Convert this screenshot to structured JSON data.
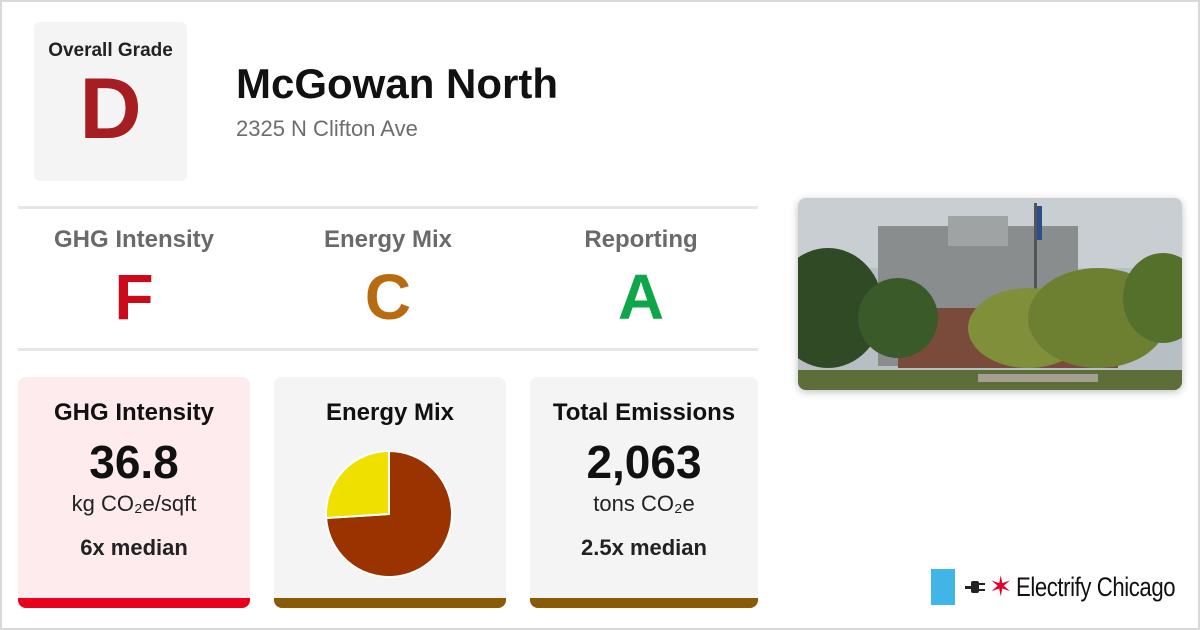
{
  "overall": {
    "label": "Overall Grade",
    "grade": "D"
  },
  "building": {
    "name": "McGowan North",
    "address": "2325 N Clifton Ave"
  },
  "subgrades": [
    {
      "title": "GHG Intensity",
      "grade": "F",
      "color": "#cc0a1c"
    },
    {
      "title": "Energy Mix",
      "grade": "C",
      "color": "#b96b0f"
    },
    {
      "title": "Reporting",
      "grade": "A",
      "color": "#0ea649"
    }
  ],
  "cards": {
    "ghg": {
      "title": "GHG Intensity",
      "value": "36.8",
      "unit": "kg CO₂e/sqft",
      "median": "6x median",
      "bar_color": "#e8001c"
    },
    "mix": {
      "title": "Energy Mix",
      "bar_color": "#8b5a06"
    },
    "emissions": {
      "title": "Total Emissions",
      "value": "2,063",
      "unit": "tons CO₂e",
      "median": "2.5x median",
      "bar_color": "#8b5a06"
    }
  },
  "chart_data": {
    "type": "pie",
    "values": [
      0.74,
      0.26
    ],
    "colors": [
      "#9a3300",
      "#efe000"
    ]
  },
  "brand": {
    "name": "Electrify Chicago",
    "flag_color": "#41b6e6",
    "star_color": "#e4002b"
  }
}
